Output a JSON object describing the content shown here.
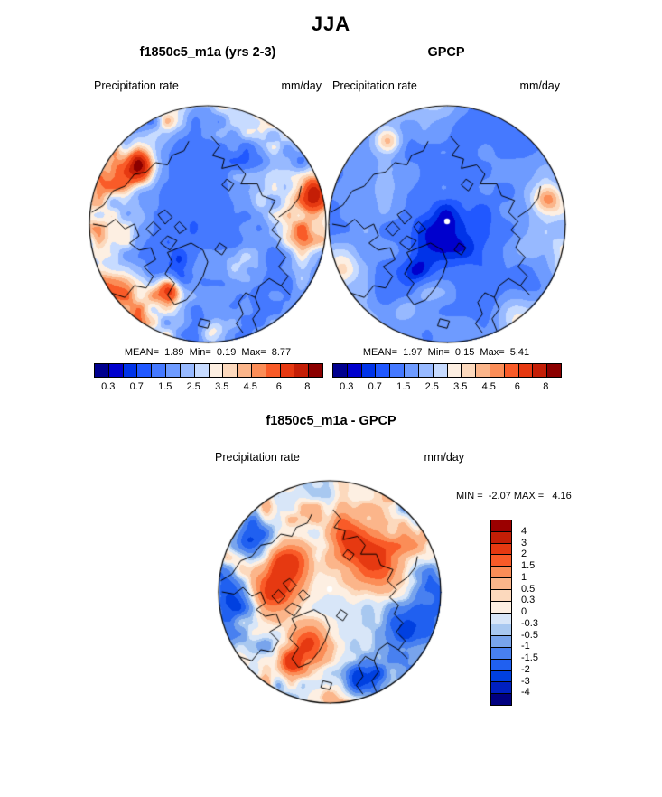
{
  "chart_data": {
    "type": "heatmap",
    "projection": "north-polar-stereographic",
    "title": "JJA",
    "maps": [
      {
        "id": "model",
        "title": "f1850c5_m1a (yrs 2-3)",
        "field_label": "Precipitation rate",
        "units": "mm/day",
        "stats_text": "MEAN=  1.89  Min=  0.19  Max=  8.77",
        "stats": {
          "mean": 1.89,
          "min": 0.19,
          "max": 8.77
        },
        "colorbar": {
          "orientation": "horizontal",
          "levels": [
            0.3,
            0.5,
            0.7,
            1,
            1.5,
            2,
            2.5,
            3,
            3.5,
            4,
            4.5,
            5,
            6,
            7,
            8
          ],
          "tick_labels": [
            "0.3",
            "0.7",
            "1.5",
            "2.5",
            "3.5",
            "4.5",
            "6",
            "8"
          ],
          "palette": [
            "#00008F",
            "#0000CD",
            "#0033E8",
            "#2158FF",
            "#4579FF",
            "#6E9BFF",
            "#97B9FF",
            "#C7DBFF",
            "#FDEFE2",
            "#FCD9BD",
            "#FBB58A",
            "#FB8D57",
            "#F95B28",
            "#E63911",
            "#C41E06",
            "#8B0000"
          ]
        },
        "render": {
          "seed": 3,
          "freq": 3.4,
          "base": [
            0.95,
            1.35
          ],
          "k": [
            0.5,
            0.55
          ],
          "blobs": [
            [
              -0.58,
              -0.47,
              0.09,
              5.0
            ],
            [
              -0.75,
              -0.38,
              0.1,
              2.5
            ],
            [
              0.88,
              -0.25,
              0.1,
              3.5
            ],
            [
              0.8,
              0.1,
              0.12,
              1.5
            ],
            [
              -0.33,
              0.57,
              0.07,
              4.5
            ],
            [
              -0.85,
              0.5,
              0.12,
              2.0
            ],
            [
              -0.25,
              0.4,
              0.12,
              -0.9
            ],
            [
              0.05,
              0.9,
              0.08,
              2.0
            ]
          ],
          "pole_dot": false
        }
      },
      {
        "id": "obs",
        "title": "GPCP",
        "field_label": "Precipitation rate",
        "units": "mm/day",
        "stats_text": "MEAN=  1.97  Min=  0.15  Max=  5.41",
        "stats": {
          "mean": 1.97,
          "min": 0.15,
          "max": 5.41
        },
        "colorbar": {
          "orientation": "horizontal",
          "levels": [
            0.3,
            0.5,
            0.7,
            1,
            1.5,
            2,
            2.5,
            3,
            3.5,
            4,
            4.5,
            5,
            6,
            7,
            8
          ],
          "tick_labels": [
            "0.3",
            "0.7",
            "1.5",
            "2.5",
            "3.5",
            "4.5",
            "6",
            "8"
          ],
          "palette": [
            "#00008F",
            "#0000CD",
            "#0033E8",
            "#2158FF",
            "#4579FF",
            "#6E9BFF",
            "#97B9FF",
            "#C7DBFF",
            "#FDEFE2",
            "#FCD9BD",
            "#FBB58A",
            "#FB8D57",
            "#F95B28",
            "#E63911",
            "#C41E06",
            "#8B0000"
          ]
        },
        "render": {
          "seed": 9,
          "freq": 2.3,
          "base": [
            0.9,
            1.3
          ],
          "k": [
            0.4,
            0.5
          ],
          "blobs": [
            [
              0.85,
              -0.22,
              0.09,
              3.0
            ],
            [
              -0.5,
              -0.7,
              0.07,
              2.2
            ],
            [
              0.0,
              0.02,
              0.3,
              -0.45
            ],
            [
              -0.26,
              0.42,
              0.1,
              -0.9
            ],
            [
              0.6,
              0.75,
              0.12,
              1.2
            ],
            [
              -0.9,
              0.3,
              0.1,
              1.0
            ]
          ],
          "pole_dot": true
        }
      },
      {
        "id": "diff",
        "title": "f1850c5_m1a - GPCP",
        "field_label": "Precipitation rate",
        "units": "mm/day",
        "stats_text": "MIN =  -2.07 MAX =   4.16",
        "stats": {
          "min": -2.07,
          "max": 4.16
        },
        "colorbar": {
          "orientation": "vertical",
          "levels": [
            -4,
            -3,
            -2,
            -1.5,
            -1,
            -0.5,
            -0.3,
            0,
            0.3,
            0.5,
            1,
            1.5,
            2,
            3,
            4
          ],
          "tick_labels_top_to_bottom": [
            "4",
            "3",
            "2",
            "1.5",
            "1",
            "0.5",
            "0.3",
            "0",
            "-0.3",
            "-0.5",
            "-1",
            "-1.5",
            "-2",
            "-3",
            "-4"
          ],
          "palette": [
            "#000080",
            "#0020C0",
            "#0040E0",
            "#2060F0",
            "#4880F0",
            "#78A4EC",
            "#A8C8F0",
            "#D8E6F8",
            "#FDEFE2",
            "#FCD9BD",
            "#FBB58A",
            "#FB8D57",
            "#F95B28",
            "#E63911",
            "#C41E06",
            "#9B0000"
          ]
        },
        "render": {
          "seed": 5,
          "freq": 3.4,
          "amp": [
            0.28,
            1.6
          ],
          "blobs": [
            [
              -0.38,
              -0.28,
              0.16,
              2.4
            ],
            [
              -0.5,
              0.0,
              0.14,
              2.0
            ],
            [
              0.42,
              -0.32,
              0.18,
              2.2
            ],
            [
              0.15,
              -0.5,
              0.12,
              1.8
            ],
            [
              -0.2,
              0.45,
              0.12,
              2.2
            ],
            [
              -0.35,
              0.62,
              0.08,
              2.6
            ],
            [
              -0.85,
              0.1,
              0.13,
              -2.6
            ],
            [
              -0.7,
              -0.5,
              0.12,
              -2.0
            ],
            [
              0.75,
              0.35,
              0.15,
              -2.2
            ],
            [
              0.3,
              0.8,
              0.12,
              -2.4
            ],
            [
              0.9,
              -0.05,
              0.1,
              -1.5
            ]
          ],
          "pole_dot": true
        }
      }
    ]
  }
}
